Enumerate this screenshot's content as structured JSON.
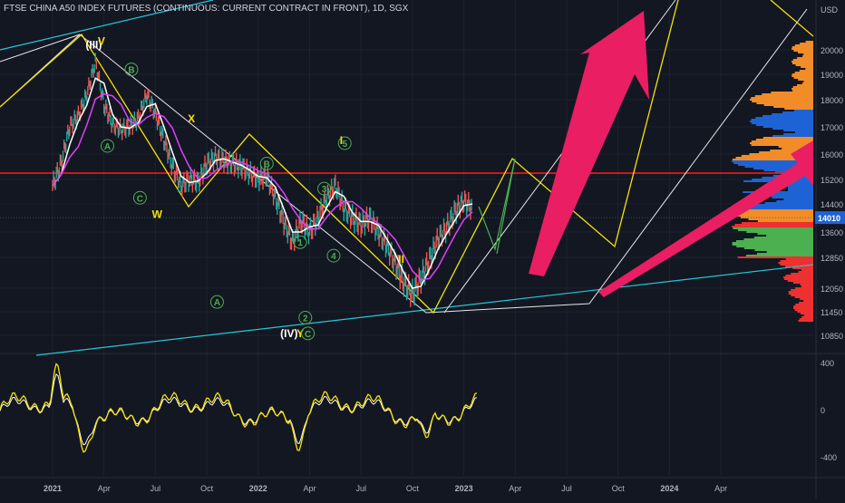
{
  "title": "FTSE CHINA A50 INDEX FUTURES (CONTINUOUS: CURRENT CONTRACT IN FRONT), 1D, SGX",
  "chart_data": {
    "type": "line",
    "currency": "USD",
    "last_price": "14010",
    "price_axis": {
      "ticks": [
        20000,
        19000,
        18000,
        17000,
        16000,
        15200,
        14400,
        13600,
        12850,
        12050,
        11450,
        10850
      ],
      "labels": [
        "20000",
        "19000",
        "18000",
        "17000",
        "16000",
        "15200",
        "14400",
        "13600",
        "12850",
        "12050",
        "11450",
        "10850"
      ]
    },
    "oscillator_axis": {
      "ticks": [
        400,
        0,
        -400
      ],
      "labels": [
        "400",
        "0",
        "-400"
      ]
    },
    "time_axis": {
      "labels": [
        "2021",
        "Apr",
        "Jul",
        "Oct",
        "2022",
        "Apr",
        "Jul",
        "Oct",
        "2023",
        "Apr",
        "Jul",
        "Oct",
        "2024",
        "Apr"
      ],
      "bold": [
        "2021",
        "2022",
        "2023",
        "2024"
      ]
    },
    "price_series": [
      {
        "month": 0,
        "price": 15000
      },
      {
        "month": 0.5,
        "price": 15700
      },
      {
        "month": 1,
        "price": 17000
      },
      {
        "month": 1.5,
        "price": 17400
      },
      {
        "month": 2,
        "price": 18200
      },
      {
        "month": 2.5,
        "price": 19500
      },
      {
        "month": 3,
        "price": 17800
      },
      {
        "month": 3.5,
        "price": 17100
      },
      {
        "month": 4,
        "price": 16900
      },
      {
        "month": 4.5,
        "price": 17000
      },
      {
        "month": 5,
        "price": 17300
      },
      {
        "month": 5.5,
        "price": 18200
      },
      {
        "month": 6,
        "price": 17500
      },
      {
        "month": 6.5,
        "price": 16500
      },
      {
        "month": 7,
        "price": 15600
      },
      {
        "month": 7.5,
        "price": 15000
      },
      {
        "month": 8,
        "price": 15200
      },
      {
        "month": 8.5,
        "price": 15100
      },
      {
        "month": 9,
        "price": 15700
      },
      {
        "month": 9.5,
        "price": 15900
      },
      {
        "month": 10,
        "price": 15800
      },
      {
        "month": 10.5,
        "price": 15700
      },
      {
        "month": 11,
        "price": 15600
      },
      {
        "month": 11.5,
        "price": 15400
      },
      {
        "month": 12,
        "price": 15200
      },
      {
        "month": 12.5,
        "price": 15300
      },
      {
        "month": 13,
        "price": 14600
      },
      {
        "month": 13.5,
        "price": 13900
      },
      {
        "month": 14,
        "price": 13300
      },
      {
        "month": 14.5,
        "price": 13900
      },
      {
        "month": 15,
        "price": 13600
      },
      {
        "month": 15.5,
        "price": 14000
      },
      {
        "month": 16,
        "price": 14600
      },
      {
        "month": 16.5,
        "price": 15000
      },
      {
        "month": 17,
        "price": 14300
      },
      {
        "month": 17.5,
        "price": 14000
      },
      {
        "month": 18,
        "price": 13800
      },
      {
        "month": 18.5,
        "price": 14000
      },
      {
        "month": 19,
        "price": 13600
      },
      {
        "month": 19.5,
        "price": 13200
      },
      {
        "month": 20,
        "price": 12700
      },
      {
        "month": 20.5,
        "price": 12200
      },
      {
        "month": 21,
        "price": 11900
      },
      {
        "month": 21.5,
        "price": 12300
      },
      {
        "month": 22,
        "price": 12800
      },
      {
        "month": 22.5,
        "price": 13400
      },
      {
        "month": 23,
        "price": 13700
      },
      {
        "month": 23.5,
        "price": 14200
      },
      {
        "month": 24,
        "price": 14500
      },
      {
        "month": 24.5,
        "price": 14300
      }
    ],
    "support_line_price": 15400,
    "wave_labels": [
      {
        "text": "(III)",
        "month": 2.4,
        "price": 20200,
        "color": "#ffffff"
      },
      {
        "text": "V",
        "month": 2.85,
        "price": 20350,
        "color": "#f5e20a"
      },
      {
        "text": "B",
        "month": 4.6,
        "price": 19200,
        "color": "#4caf50",
        "circled": true
      },
      {
        "text": "A",
        "month": 3.2,
        "price": 16300,
        "color": "#4caf50",
        "circled": true
      },
      {
        "text": "C",
        "month": 5.1,
        "price": 14600,
        "color": "#4caf50",
        "circled": true
      },
      {
        "text": "W",
        "month": 6.1,
        "price": 14100,
        "color": "#f5e20a"
      },
      {
        "text": "X",
        "month": 8.1,
        "price": 17300,
        "color": "#f5e20a"
      },
      {
        "text": "B",
        "month": 12.5,
        "price": 15700,
        "color": "#4caf50",
        "circled": true
      },
      {
        "text": "A",
        "month": 9.6,
        "price": 11700,
        "color": "#4caf50",
        "circled": true
      },
      {
        "text": "(IV)",
        "month": 13.8,
        "price": 10900,
        "color": "#ffffff"
      },
      {
        "text": "Y",
        "month": 14.45,
        "price": 10900,
        "color": "#f5e20a"
      },
      {
        "text": "C",
        "month": 14.9,
        "price": 10900,
        "color": "#4caf50",
        "circled": true
      },
      {
        "text": "1",
        "month": 14.45,
        "price": 13300,
        "color": "#4caf50",
        "circled": true
      },
      {
        "text": "2",
        "month": 14.75,
        "price": 11300,
        "color": "#4caf50",
        "circled": true
      },
      {
        "text": "3",
        "month": 15.85,
        "price": 14900,
        "color": "#4caf50",
        "circled": true
      },
      {
        "text": "4",
        "month": 16.4,
        "price": 12900,
        "color": "#4caf50",
        "circled": true
      },
      {
        "text": "5",
        "month": 17.05,
        "price": 16400,
        "color": "#4caf50",
        "circled": true
      },
      {
        "text": "I",
        "month": 16.85,
        "price": 16500,
        "color": "#f5e20a"
      },
      {
        "text": "II",
        "month": 20.35,
        "price": 12800,
        "color": "#f5e20a"
      }
    ],
    "legend": "none",
    "grid": true
  },
  "colors": {
    "background": "#131722",
    "candle_up": "#26a69a",
    "candle_down": "#ef5350",
    "ema_fast": "#ffffff",
    "ema_slow": "#e040fb",
    "support_red": "#ff1e1e",
    "channel_cyan": "#26c6da",
    "wave_yellow": "#f5e20a",
    "wave_green": "#4caf50",
    "arrow_pink": "#e91e63",
    "oscillator": "#f5e20a",
    "price_badge": "#1e63d6"
  }
}
